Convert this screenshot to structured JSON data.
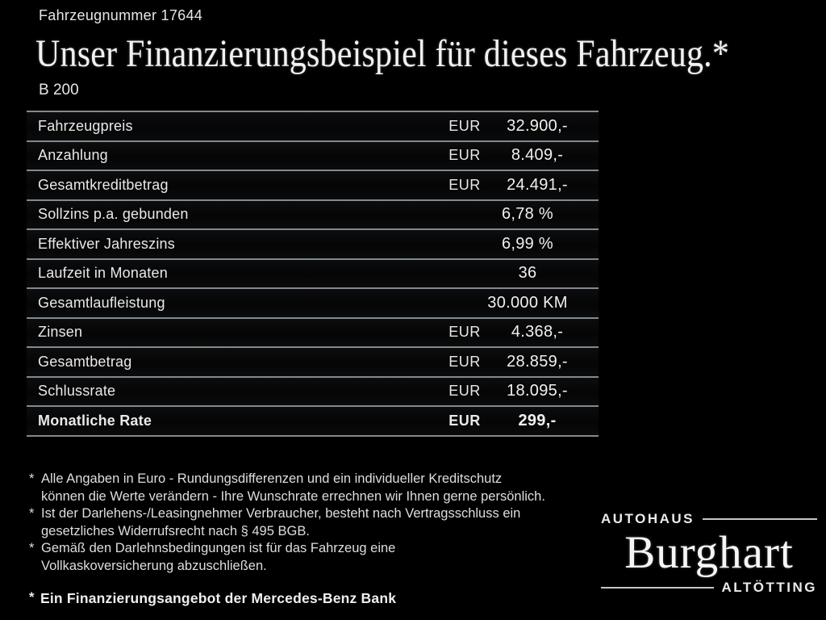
{
  "colors": {
    "background": "#000000",
    "text": "#eaeaea",
    "separator_line": "#85898d"
  },
  "header": {
    "vehicle_number": "Fahrzeugnummer 17644",
    "title": "Unser Finanzierungsbeispiel für dieses Fahrzeug.*",
    "model": "B 200"
  },
  "table": {
    "rows": [
      {
        "label": "Fahrzeugpreis",
        "currency": "EUR",
        "value": "32.900,-",
        "bold": false
      },
      {
        "label": "Anzahlung",
        "currency": "EUR",
        "value": "8.409,-",
        "bold": false
      },
      {
        "label": "Gesamtkreditbetrag",
        "currency": "EUR",
        "value": "24.491,-",
        "bold": false
      },
      {
        "label": "Sollzins p.a. gebunden",
        "currency": "",
        "value": "6,78 %",
        "bold": false
      },
      {
        "label": "Effektiver Jahreszins",
        "currency": "",
        "value": "6,99 %",
        "bold": false
      },
      {
        "label": "Laufzeit in Monaten",
        "currency": "",
        "value": "36",
        "bold": false
      },
      {
        "label": "Gesamtlaufleistung",
        "currency": "",
        "value": "30.000 KM",
        "bold": false
      },
      {
        "label": "Zinsen",
        "currency": "EUR",
        "value": "4.368,-",
        "bold": false
      },
      {
        "label": "Gesamtbetrag",
        "currency": "EUR",
        "value": "28.859,-",
        "bold": false
      },
      {
        "label": "Schlussrate",
        "currency": "EUR",
        "value": "18.095,-",
        "bold": false
      },
      {
        "label": "Monatliche Rate",
        "currency": "EUR",
        "value": "299,-",
        "bold": true
      }
    ]
  },
  "footnotes": [
    {
      "marker": "*",
      "lines": [
        "Alle Angaben in Euro - Rundungsdifferenzen und ein individueller Kreditschutz",
        "können die Werte verändern - Ihre Wunschrate errechnen wir Ihnen gerne persönlich."
      ]
    },
    {
      "marker": "*",
      "lines": [
        "Ist der Darlehens-/Leasingnehmer Verbraucher, besteht nach Vertragsschluss ein",
        "gesetzliches Widerrufsrecht nach § 495 BGB."
      ]
    },
    {
      "marker": "*",
      "lines": [
        "Gemäß den Darlehnsbedingungen ist für das Fahrzeug eine",
        "Vollkaskoversicherung abzuschließen."
      ]
    }
  ],
  "financing_note": {
    "marker": "*",
    "text": "Ein Finanzierungsangebot der Mercedes-Benz Bank"
  },
  "dealer_logo": {
    "top_word": "AUTOHAUS",
    "name": "Burghart",
    "bottom_word": "ALTÖTTING"
  }
}
